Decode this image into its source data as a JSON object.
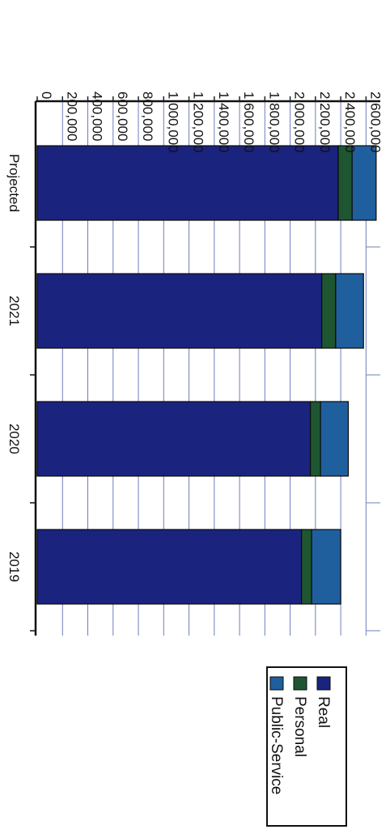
{
  "chart_data": {
    "type": "bar",
    "orientation": "vertical-stacked, page rotated 90 degrees clockwise",
    "categories": [
      "Projected",
      "2021",
      "2020",
      "2019"
    ],
    "series": [
      {
        "name": "Real",
        "values": [
          2380000,
          2250000,
          2160000,
          2090000
        ],
        "color": "#1a237e"
      },
      {
        "name": "Personal",
        "values": [
          110000,
          110000,
          80000,
          80000
        ],
        "color": "#1e5631"
      },
      {
        "name": "Public-Service",
        "values": [
          190000,
          220000,
          220000,
          230000
        ],
        "color": "#1f5f9e"
      }
    ],
    "yticks": [
      "0",
      "200,000",
      "400,000",
      "600,000",
      "800,000",
      "1,000,000",
      "1,200,000",
      "1,400,000",
      "1,600,000",
      "1,800,000",
      "2,000,000",
      "2,200,000",
      "2,400,000",
      "2,600,000"
    ],
    "ylim": [
      0,
      2700000
    ],
    "grid": true,
    "legend_position": "bottom"
  }
}
